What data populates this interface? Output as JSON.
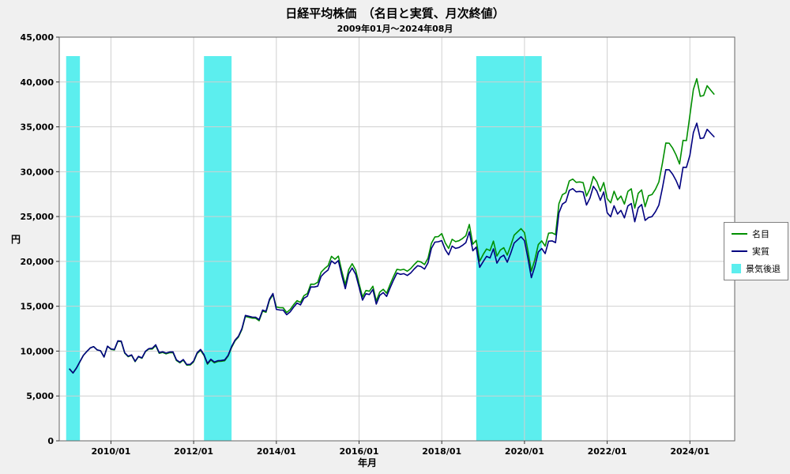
{
  "chart_data": {
    "type": "line",
    "title": "日経平均株価　（名目と実質、月次終値）",
    "subtitle": "2009年01月～2024年08月",
    "xlabel": "年月",
    "ylabel": "円",
    "ylim": [
      0,
      45000
    ],
    "y_ticks": [
      0,
      5000,
      10000,
      15000,
      20000,
      25000,
      30000,
      35000,
      40000,
      45000
    ],
    "x_ticks": [
      "2010/01",
      "2012/01",
      "2014/01",
      "2016/01",
      "2018/01",
      "2020/01",
      "2022/01",
      "2024/01"
    ],
    "x_start": "2009/01",
    "x_end": "2024/08",
    "grid": true,
    "legend_position": "right",
    "series": [
      {
        "name": "名目",
        "color": "#008f00",
        "values": [
          7994,
          7568,
          8110,
          8828,
          9523,
          9958,
          10357,
          10493,
          10133,
          10035,
          9346,
          10546,
          10198,
          10126,
          11090,
          11057,
          9769,
          9383,
          9537,
          8824,
          9369,
          9202,
          9938,
          10229,
          10237,
          10624,
          9755,
          9850,
          9694,
          9816,
          9833,
          8955,
          8700,
          8988,
          8435,
          8455,
          8803,
          9723,
          10084,
          9521,
          8543,
          9007,
          8695,
          8840,
          8870,
          8928,
          9446,
          10395,
          11139,
          11559,
          12398,
          13861,
          13775,
          13677,
          13668,
          13389,
          14456,
          14328,
          15662,
          16291,
          14915,
          14841,
          14828,
          14304,
          14632,
          15162,
          15621,
          15425,
          16174,
          16414,
          17460,
          17451,
          17674,
          18798,
          19207,
          19520,
          20563,
          20236,
          20585,
          18890,
          17388,
          19083,
          19747,
          19034,
          17518,
          16027,
          16759,
          16666,
          17235,
          15576,
          16569,
          16887,
          16450,
          17425,
          18308,
          19114,
          19041,
          19119,
          18909,
          19197,
          19651,
          20033,
          19925,
          19646,
          20356,
          22012,
          22725,
          22765,
          23098,
          22068,
          21454,
          22468,
          22202,
          22305,
          22554,
          22865,
          24120,
          21920,
          22351,
          20015,
          20773,
          21385,
          21206,
          22259,
          20601,
          21276,
          21522,
          20704,
          21756,
          22927,
          23294,
          23657,
          23205,
          21143,
          18917,
          20194,
          21878,
          22288,
          21710,
          23140,
          23185,
          22977,
          26434,
          27444,
          27663,
          28966,
          29179,
          28813,
          28860,
          28792,
          27284,
          28090,
          29453,
          28893,
          27822,
          28792,
          27002,
          26527,
          27821,
          26848,
          27280,
          26393,
          27802,
          28092,
          25937,
          27587,
          27969,
          26095,
          27327,
          27446,
          28041,
          28856,
          30888,
          33189,
          33172,
          32619,
          31858,
          30859,
          33487,
          33464,
          36287,
          39166,
          40369,
          38406,
          38488,
          39583,
          39102,
          38648
        ]
      },
      {
        "name": "実質",
        "color": "#000080",
        "values": [
          7994,
          7568,
          8110,
          8828,
          9523,
          9958,
          10357,
          10493,
          10133,
          10035,
          9346,
          10546,
          10249,
          10177,
          11146,
          11113,
          9818,
          9430,
          9585,
          8868,
          9416,
          9248,
          9988,
          10280,
          10320,
          10710,
          9834,
          9929,
          9772,
          9895,
          9912,
          9027,
          8770,
          9060,
          8503,
          8523,
          8892,
          9821,
          10186,
          9617,
          8629,
          9098,
          8783,
          8929,
          8960,
          9018,
          9541,
          10500,
          11229,
          11652,
          12498,
          13973,
          13886,
          13787,
          13778,
          13497,
          14573,
          14444,
          15788,
          16422,
          14651,
          14579,
          14566,
          14051,
          14373,
          14894,
          15345,
          15152,
          15888,
          16124,
          17151,
          17142,
          17243,
          18339,
          18738,
          19044,
          20061,
          19743,
          20083,
          18429,
          16964,
          18617,
          19265,
          18570,
          17141,
          15682,
          16398,
          16307,
          16864,
          15241,
          16212,
          16523,
          16096,
          17050,
          17914,
          18703,
          18558,
          18634,
          18430,
          18710,
          19153,
          19525,
          19420,
          19148,
          19840,
          21454,
          22149,
          22188,
          22317,
          21322,
          20729,
          21708,
          21451,
          21551,
          21791,
          22092,
          23304,
          21179,
          21595,
          19338,
          19974,
          20562,
          20390,
          21403,
          19809,
          20458,
          20694,
          19908,
          20919,
          22045,
          22398,
          22747,
          22313,
          20330,
          18189,
          19417,
          21037,
          21431,
          20875,
          22250,
          22293,
          22093,
          25417,
          26388,
          26650,
          27906,
          28111,
          27758,
          27803,
          27738,
          26285,
          27062,
          28375,
          27835,
          26803,
          27738,
          25426,
          24978,
          26197,
          25281,
          25687,
          24852,
          26179,
          26452,
          24423,
          25977,
          26336,
          24572,
          24888,
          24996,
          25538,
          26280,
          28131,
          30227,
          30211,
          29708,
          29014,
          28104,
          30498,
          30477,
          31831,
          34356,
          35411,
          33689,
          33761,
          34722,
          34300,
          33902
        ]
      }
    ],
    "recessions": {
      "label": "景気後退",
      "color": "#5ceeee",
      "bands": [
        {
          "start": "2008/12",
          "end": "2009/04"
        },
        {
          "start": "2012/04",
          "end": "2012/12"
        },
        {
          "start": "2018/11",
          "end": "2020/06"
        }
      ]
    }
  }
}
